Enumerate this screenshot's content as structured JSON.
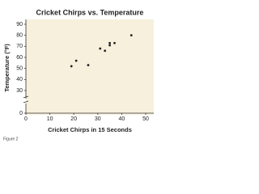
{
  "chart_data": {
    "type": "scatter",
    "title": "Cricket Chirps vs. Temperature",
    "x_label": "Cricket Chirps in 15 Seconds",
    "y_label": "Temperature (°F)",
    "caption": "Figure 2",
    "x": [
      19,
      21,
      26,
      31,
      33,
      35,
      35,
      37,
      44
    ],
    "values": [
      52,
      57,
      53,
      68,
      66,
      71,
      73,
      73,
      80
    ],
    "color": "#222222",
    "xlim": [
      0,
      50
    ],
    "xticks": [
      0,
      10,
      20,
      30,
      40,
      50
    ],
    "ylim": [
      0,
      90
    ],
    "yticks": [
      0,
      30,
      40,
      50,
      60,
      70,
      80,
      90
    ],
    "y_axis_break": true,
    "grid": false
  }
}
